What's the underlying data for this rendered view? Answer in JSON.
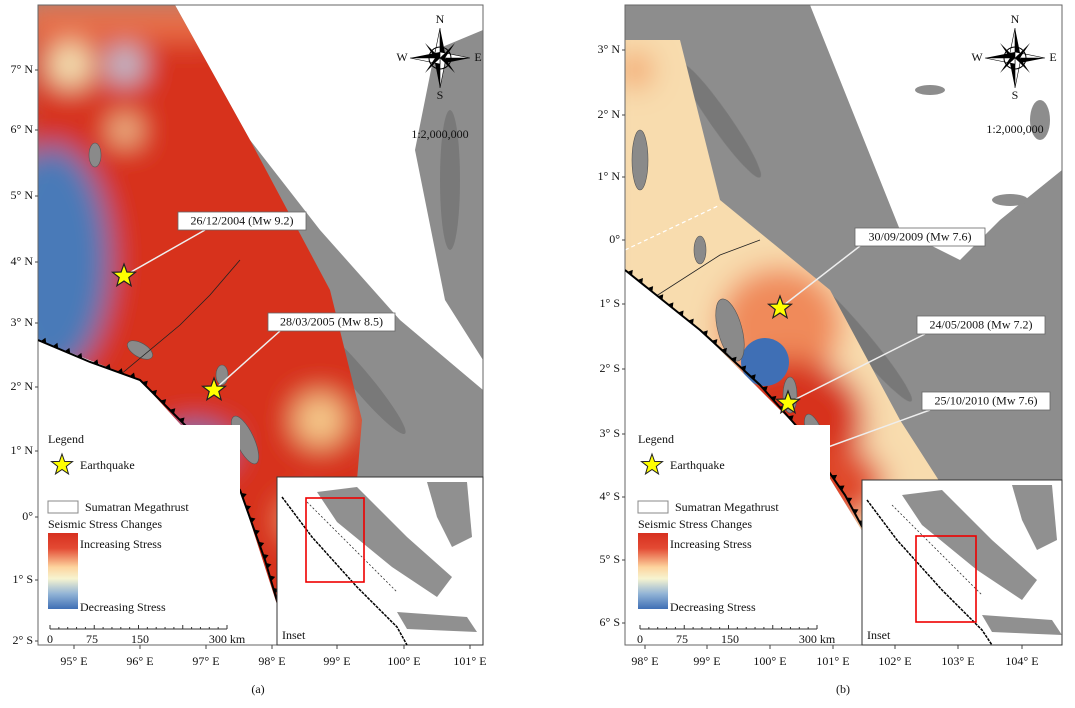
{
  "panels": [
    {
      "caption": "(a)",
      "lat_labels": [
        "7° N",
        "6° N",
        "5° N",
        "4° N",
        "3° N",
        "2° N",
        "1° N",
        "0°",
        "1° S",
        "2° S"
      ],
      "lon_labels": [
        "95° E",
        "96° E",
        "97° E",
        "98° E",
        "99° E",
        "100° E",
        "101° E"
      ],
      "compass": {
        "n": "N",
        "e": "E",
        "s": "S",
        "w": "W"
      },
      "scale_ratio": "1:2,000,000",
      "events": [
        "26/12/2004 (Mw 9.2)",
        "28/03/2005 (Mw 8.5)"
      ],
      "legend": {
        "title": "Legend",
        "earthquake": "Earthquake",
        "megathrust": "Sumatran Megathrust",
        "stress_title": "Seismic Stress Changes",
        "increasing": "Increasing Stress",
        "decreasing": "Decreasing Stress"
      },
      "scale_bar": [
        "0",
        "75",
        "150",
        "300 km"
      ],
      "inset": "Inset"
    },
    {
      "caption": "(b)",
      "lat_labels": [
        "3° N",
        "2° N",
        "1° N",
        "0°",
        "1° S",
        "2° S",
        "3° S",
        "4° S",
        "5° S",
        "6° S"
      ],
      "lon_labels": [
        "98° E",
        "99° E",
        "100° E",
        "101° E",
        "102° E",
        "103° E",
        "104° E"
      ],
      "compass": {
        "n": "N",
        "e": "E",
        "s": "S",
        "w": "W"
      },
      "scale_ratio": "1:2,000,000",
      "events": [
        "30/09/2009 (Mw 7.6)",
        "24/05/2008 (Mw 7.2)",
        "25/10/2010 (Mw 7.6)"
      ],
      "legend": {
        "title": "Legend",
        "earthquake": "Earthquake",
        "megathrust": "Sumatran Megathrust",
        "stress_title": "Seismic Stress Changes",
        "increasing": "Increasing Stress",
        "decreasing": "Decreasing Stress"
      },
      "scale_bar": [
        "0",
        "75",
        "150",
        "300 km"
      ],
      "inset": "Inset"
    }
  ]
}
